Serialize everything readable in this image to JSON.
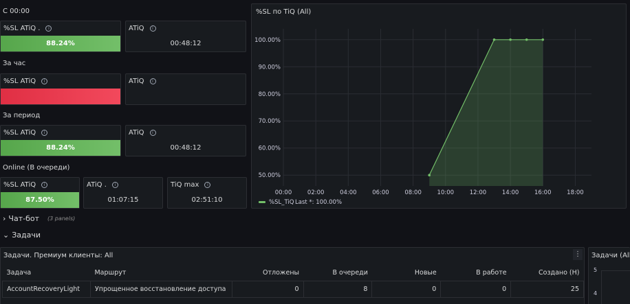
{
  "rows": {
    "since_midnight": "С 00:00",
    "hour": "За час",
    "period": "За период",
    "online": "Online (В очереди)"
  },
  "stats": {
    "r1_sl": {
      "title": "%SL ATiQ .",
      "value": "88.24%"
    },
    "r1_atiq": {
      "title": "ATiQ",
      "value": "00:48:12"
    },
    "r2_sl": {
      "title": "%SL ATiQ",
      "value": ""
    },
    "r2_atiq": {
      "title": "ATiQ",
      "value": ""
    },
    "r3_sl": {
      "title": "%SL ATiQ",
      "value": "88.24%"
    },
    "r3_atiq": {
      "title": "ATiQ",
      "value": "00:48:12"
    },
    "r4_sl": {
      "title": "%SL ATiQ",
      "value": "87.50%"
    },
    "r4_atiq": {
      "title": "ATiQ .",
      "value": "01:07:15"
    },
    "r4_tiq": {
      "title": "TiQ max",
      "value": "02:51:10"
    }
  },
  "colors": {
    "green": "#73bf69",
    "red": "#f2495c",
    "series": "#73bf69"
  },
  "chart_data": {
    "type": "area",
    "title": "%SL по TiQ (All)",
    "x_ticks": [
      "00:00",
      "02:00",
      "04:00",
      "06:00",
      "08:00",
      "10:00",
      "12:00",
      "14:00",
      "16:00",
      "18:00"
    ],
    "y_ticks": [
      "50.00%",
      "60.00%",
      "70.00%",
      "80.00%",
      "90.00%",
      "100.00%"
    ],
    "xlim": [
      "00:00",
      "19:00"
    ],
    "ylim": [
      46,
      104
    ],
    "grid": true,
    "series": [
      {
        "name": "%SL_TiQ",
        "x": [
          "09:00",
          "13:00",
          "14:00",
          "15:00",
          "16:00"
        ],
        "y": [
          50,
          100,
          100,
          100,
          100
        ]
      }
    ],
    "legend": {
      "name": "%SL_TiQ",
      "stat": "Last *: 100.00%",
      "placement": "bottom-left"
    }
  },
  "sections": {
    "chatbot": {
      "label": "Чат-бот",
      "note": "(3 panels)"
    },
    "tasks": {
      "label": "Задачи"
    }
  },
  "tasks_panel": {
    "title": "Задачи. Премиум клиенты: All",
    "menu": "⋮",
    "columns": [
      "Задача",
      "Маршрут",
      "Отложены",
      "В очереди",
      "Новые",
      "В работе",
      "Создано (H)"
    ],
    "rows": [
      [
        "AccountRecoveryLight",
        "Упрощенное восстановление доступа",
        "0",
        "8",
        "0",
        "0",
        "25"
      ]
    ]
  },
  "side_panel": {
    "title": "Задачи (All)",
    "y_ticks": [
      "5",
      "4"
    ]
  }
}
